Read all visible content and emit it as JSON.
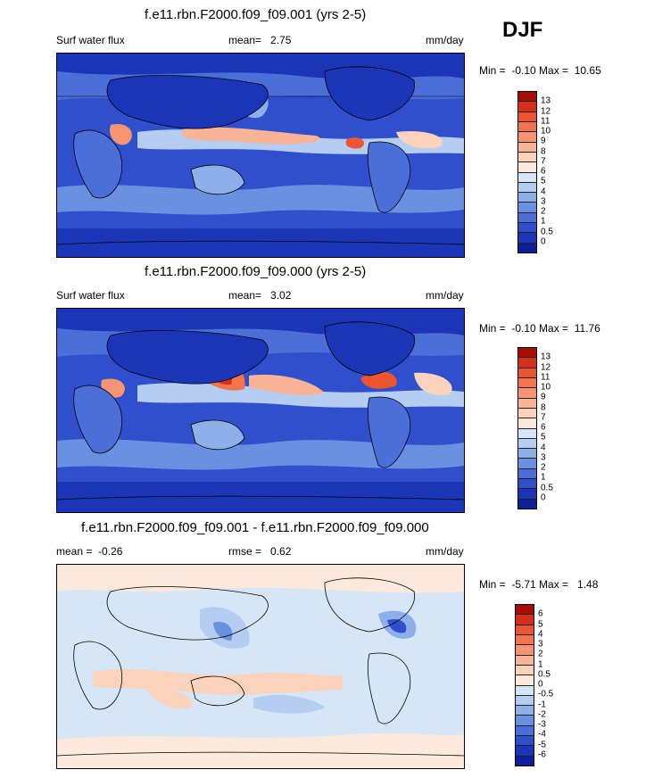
{
  "season": "DJF",
  "panels": [
    {
      "title": "f.e11.rbn.F2000.f09_f09.001 (yrs 2-5)",
      "left_label": "Surf water flux",
      "stat": "mean=   2.75",
      "units": "mm/day",
      "range": "Min =  -0.10 Max =  10.65",
      "levels": [
        "13",
        "12",
        "11",
        "10",
        "9",
        "8",
        "7",
        "6",
        "5",
        "4",
        "3",
        "2",
        "1",
        "0.5",
        "0"
      ],
      "colors": [
        "#a50d05",
        "#d6301a",
        "#ec5530",
        "#f4754d",
        "#f79473",
        "#f9b497",
        "#fbd2bb",
        "#fde8dc",
        "#d7e6f6",
        "#b4cdf0",
        "#8eb0ea",
        "#6a90e2",
        "#4a6fd8",
        "#2f4fcc",
        "#1a35b8",
        "#0c1f9a"
      ]
    },
    {
      "title": "f.e11.rbn.F2000.f09_f09.000 (yrs 2-5)",
      "left_label": "Surf water flux",
      "stat": "mean=   3.02",
      "units": "mm/day",
      "range": "Min =  -0.10 Max =  11.76",
      "levels": [
        "13",
        "12",
        "11",
        "10",
        "9",
        "8",
        "7",
        "6",
        "5",
        "4",
        "3",
        "2",
        "1",
        "0.5",
        "0"
      ],
      "colors": [
        "#a50d05",
        "#d6301a",
        "#ec5530",
        "#f4754d",
        "#f79473",
        "#f9b497",
        "#fbd2bb",
        "#fde8dc",
        "#d7e6f6",
        "#b4cdf0",
        "#8eb0ea",
        "#6a90e2",
        "#4a6fd8",
        "#2f4fcc",
        "#1a35b8",
        "#0c1f9a"
      ]
    },
    {
      "title": "f.e11.rbn.F2000.f09_f09.001 - f.e11.rbn.F2000.f09_f09.000",
      "left_label": "mean =  -0.26",
      "stat": "rmse =   0.62",
      "units": "mm/day",
      "range": "Min =  -5.71 Max =   1.48",
      "levels": [
        "6",
        "5",
        "4",
        "3",
        "2",
        "1",
        "0.5",
        "0",
        "-0.5",
        "-1",
        "-2",
        "-3",
        "-4",
        "-5",
        "-6"
      ],
      "colors": [
        "#a50d05",
        "#d6301a",
        "#ec5530",
        "#f4754d",
        "#f79473",
        "#f9b497",
        "#fbd2bb",
        "#fde8dc",
        "#d7e6f6",
        "#b4cdf0",
        "#8eb0ea",
        "#6a90e2",
        "#4a6fd8",
        "#2f4fcc",
        "#1a35b8",
        "#0c1f9a"
      ]
    }
  ]
}
